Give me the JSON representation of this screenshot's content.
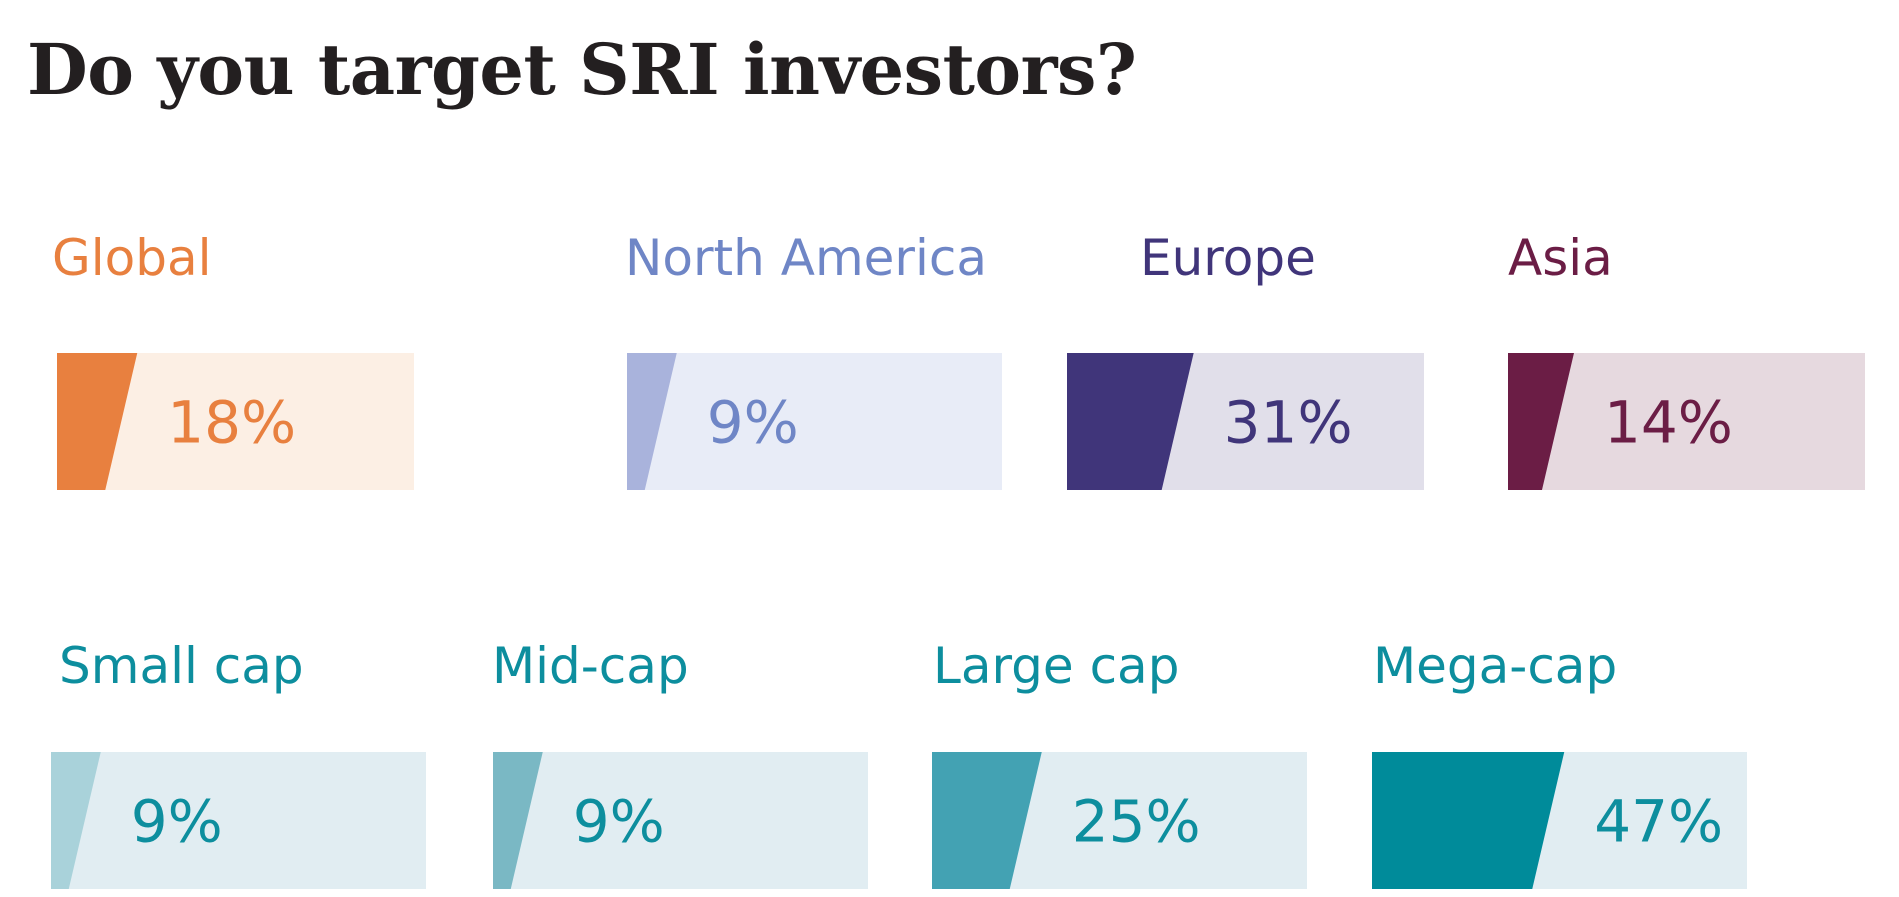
{
  "title": "Do you target SRI investors?",
  "chart_data": [
    {
      "type": "bar",
      "group": "region",
      "categories": [
        "Global",
        "North America",
        "Europe",
        "Asia"
      ],
      "values": [
        18,
        9,
        31,
        14
      ],
      "value_labels": [
        "18%",
        "9%",
        "31%",
        "14%"
      ],
      "unit": "%",
      "ylim": [
        0,
        100
      ],
      "colors": {
        "fill": [
          "#E8803F",
          "#A9B3DC",
          "#40357A",
          "#6B1D45"
        ],
        "track": [
          "#FCEFE4",
          "#E8ECF7",
          "#E1DFEA",
          "#E6D9DF"
        ],
        "label": [
          "#E8803F",
          "#6F86C6",
          "#40357A",
          "#6B1D45"
        ]
      }
    },
    {
      "type": "bar",
      "group": "market cap",
      "categories": [
        "Small cap",
        "Mid-cap",
        "Large cap",
        "Mega-cap"
      ],
      "values": [
        9,
        9,
        25,
        47
      ],
      "value_labels": [
        "9%",
        "9%",
        "25%",
        "47%"
      ],
      "unit": "%",
      "ylim": [
        0,
        100
      ],
      "colors": {
        "fill": [
          "#A9D2DA",
          "#7AB8C4",
          "#43A2B3",
          "#008B9A"
        ],
        "track": [
          "#E1EDF2",
          "#E1EDF2",
          "#E1EDF2",
          "#E1EDF2"
        ],
        "label": [
          "#0D8E9E",
          "#0D8E9E",
          "#0D8E9E",
          "#0D8E9E"
        ]
      }
    }
  ]
}
